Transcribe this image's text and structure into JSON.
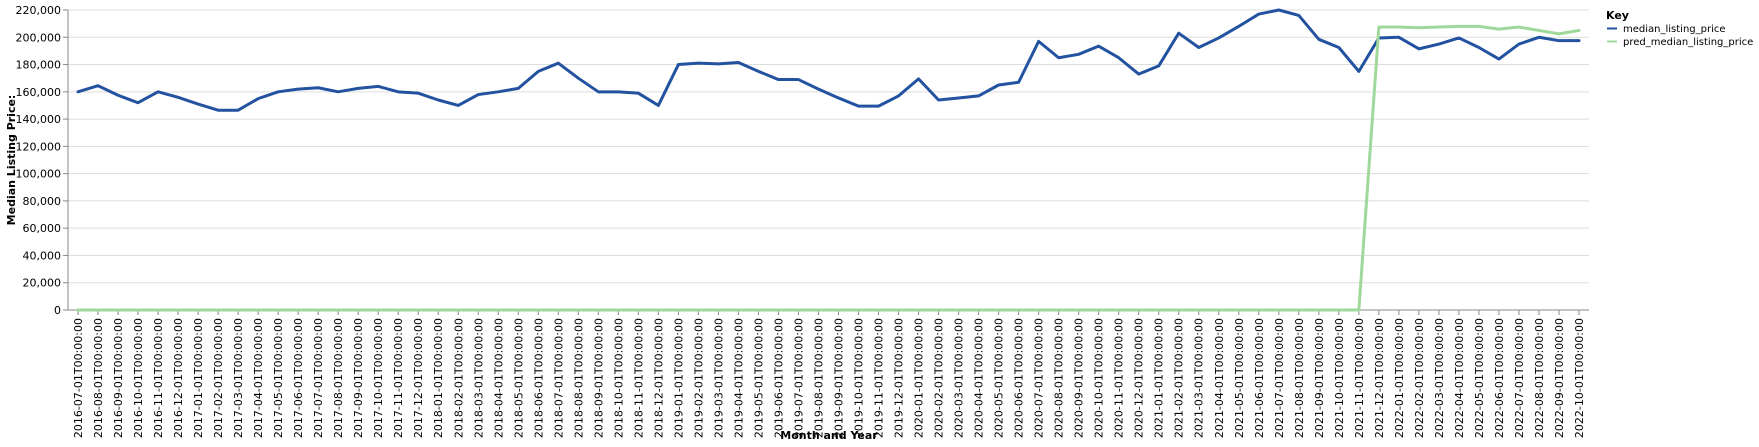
{
  "chart_data": {
    "type": "line",
    "xlabel": "Month and Year",
    "ylabel": "Median Listing Price:",
    "ylim": [
      0,
      220000
    ],
    "y_ticks": [
      0,
      20000,
      40000,
      60000,
      80000,
      100000,
      120000,
      140000,
      160000,
      180000,
      200000,
      220000
    ],
    "grid": true,
    "legend_placement": "top-right",
    "legend_title": "Key",
    "x": [
      "2016-07-01T00:00:00",
      "2016-08-01T00:00:00",
      "2016-09-01T00:00:00",
      "2016-10-01T00:00:00",
      "2016-11-01T00:00:00",
      "2016-12-01T00:00:00",
      "2017-01-01T00:00:00",
      "2017-02-01T00:00:00",
      "2017-03-01T00:00:00",
      "2017-04-01T00:00:00",
      "2017-05-01T00:00:00",
      "2017-06-01T00:00:00",
      "2017-07-01T00:00:00",
      "2017-08-01T00:00:00",
      "2017-09-01T00:00:00",
      "2017-10-01T00:00:00",
      "2017-11-01T00:00:00",
      "2017-12-01T00:00:00",
      "2018-01-01T00:00:00",
      "2018-02-01T00:00:00",
      "2018-03-01T00:00:00",
      "2018-04-01T00:00:00",
      "2018-05-01T00:00:00",
      "2018-06-01T00:00:00",
      "2018-07-01T00:00:00",
      "2018-08-01T00:00:00",
      "2018-09-01T00:00:00",
      "2018-10-01T00:00:00",
      "2018-11-01T00:00:00",
      "2018-12-01T00:00:00",
      "2019-01-01T00:00:00",
      "2019-02-01T00:00:00",
      "2019-03-01T00:00:00",
      "2019-04-01T00:00:00",
      "2019-05-01T00:00:00",
      "2019-06-01T00:00:00",
      "2019-07-01T00:00:00",
      "2019-08-01T00:00:00",
      "2019-09-01T00:00:00",
      "2019-10-01T00:00:00",
      "2019-11-01T00:00:00",
      "2019-12-01T00:00:00",
      "2020-01-01T00:00:00",
      "2020-02-01T00:00:00",
      "2020-03-01T00:00:00",
      "2020-04-01T00:00:00",
      "2020-05-01T00:00:00",
      "2020-06-01T00:00:00",
      "2020-07-01T00:00:00",
      "2020-08-01T00:00:00",
      "2020-09-01T00:00:00",
      "2020-10-01T00:00:00",
      "2020-11-01T00:00:00",
      "2020-12-01T00:00:00",
      "2021-01-01T00:00:00",
      "2021-02-01T00:00:00",
      "2021-03-01T00:00:00",
      "2021-04-01T00:00:00",
      "2021-05-01T00:00:00",
      "2021-06-01T00:00:00",
      "2021-07-01T00:00:00",
      "2021-08-01T00:00:00",
      "2021-09-01T00:00:00",
      "2021-10-01T00:00:00",
      "2021-11-01T00:00:00",
      "2021-12-01T00:00:00",
      "2022-01-01T00:00:00",
      "2022-02-01T00:00:00",
      "2022-03-01T00:00:00",
      "2022-04-01T00:00:00",
      "2022-05-01T00:00:00",
      "2022-06-01T00:00:00",
      "2022-07-01T00:00:00",
      "2022-08-01T00:00:00",
      "2022-09-01T00:00:00",
      "2022-10-01T00:00:00"
    ],
    "series": [
      {
        "name": "median_listing_price",
        "color": "#2352a0",
        "values": [
          160000,
          164500,
          157500,
          152000,
          160000,
          156000,
          151000,
          146500,
          146500,
          155000,
          160000,
          162000,
          163000,
          160000,
          162500,
          164000,
          160000,
          159000,
          154000,
          150000,
          158000,
          160000,
          162500,
          175000,
          181000,
          170000,
          160000,
          160000,
          159000,
          150000,
          180000,
          181000,
          180500,
          181500,
          175000,
          169000,
          169000,
          162000,
          155500,
          149500,
          149500,
          157000,
          169500,
          154000,
          155500,
          157000,
          165000,
          167000,
          197000,
          185000,
          187500,
          193500,
          185000,
          173000,
          179000,
          203000,
          192500,
          199500,
          208000,
          217000,
          220000,
          216000,
          198500,
          192500,
          175000,
          199500,
          200000,
          191500,
          195000,
          199500,
          192500,
          184000,
          195000,
          200000,
          197500,
          197500
        ]
      },
      {
        "name": "pred_median_listing_price",
        "color": "#9fd89a",
        "values": [
          0,
          0,
          0,
          0,
          0,
          0,
          0,
          0,
          0,
          0,
          0,
          0,
          0,
          0,
          0,
          0,
          0,
          0,
          0,
          0,
          0,
          0,
          0,
          0,
          0,
          0,
          0,
          0,
          0,
          0,
          0,
          0,
          0,
          0,
          0,
          0,
          0,
          0,
          0,
          0,
          0,
          0,
          0,
          0,
          0,
          0,
          0,
          0,
          0,
          0,
          0,
          0,
          0,
          0,
          0,
          0,
          0,
          0,
          0,
          0,
          0,
          0,
          0,
          0,
          0,
          207500,
          207500,
          207000,
          207500,
          208000,
          208000,
          206000,
          207500,
          205000,
          202500,
          205000
        ]
      }
    ]
  }
}
